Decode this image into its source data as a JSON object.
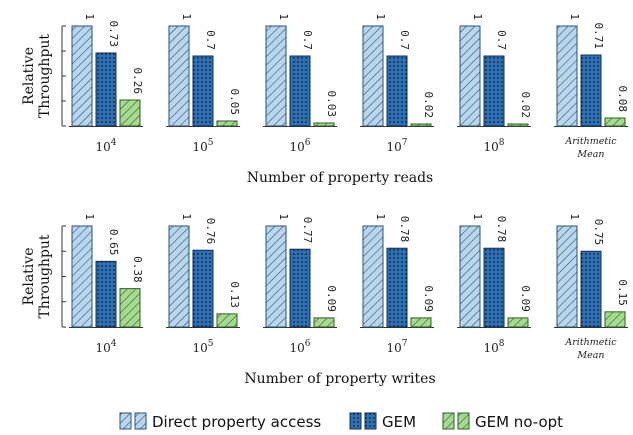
{
  "chart_data": [
    {
      "type": "bar",
      "categories": [
        "10^4",
        "10^5",
        "10^6",
        "10^7",
        "10^8",
        "Arithmetic Mean"
      ],
      "series": [
        {
          "name": "Direct property access",
          "values": [
            1,
            1,
            1,
            1,
            1,
            1
          ]
        },
        {
          "name": "GEM",
          "values": [
            0.73,
            0.7,
            0.7,
            0.7,
            0.7,
            0.71
          ]
        },
        {
          "name": "GEM no-opt",
          "values": [
            0.26,
            0.05,
            0.03,
            0.02,
            0.02,
            0.08
          ]
        }
      ],
      "xlabel": "Number of property reads",
      "ylabel": "Relative Throughput",
      "ylim": [
        0,
        1
      ]
    },
    {
      "type": "bar",
      "categories": [
        "10^4",
        "10^5",
        "10^6",
        "10^7",
        "10^8",
        "Arithmetic Mean"
      ],
      "series": [
        {
          "name": "Direct property access",
          "values": [
            1,
            1,
            1,
            1,
            1,
            1
          ]
        },
        {
          "name": "GEM",
          "values": [
            0.65,
            0.76,
            0.77,
            0.78,
            0.78,
            0.75
          ]
        },
        {
          "name": "GEM no-opt",
          "values": [
            0.38,
            0.13,
            0.09,
            0.09,
            0.09,
            0.15
          ]
        }
      ],
      "xlabel": "Number of property writes",
      "ylabel": "Relative Throughput",
      "ylim": [
        0,
        1
      ]
    }
  ],
  "tick_labels": [
    {
      "base": "10",
      "exp": "4"
    },
    {
      "base": "10",
      "exp": "5"
    },
    {
      "base": "10",
      "exp": "6"
    },
    {
      "base": "10",
      "exp": "7"
    },
    {
      "base": "10",
      "exp": "8"
    },
    {
      "line1": "Arithmetic",
      "line2": "Mean"
    }
  ],
  "legend": [
    {
      "label": "Direct property access",
      "pattern": "hatch-direct"
    },
    {
      "label": "GEM",
      "pattern": "dots-gem"
    },
    {
      "label": "GEM no-opt",
      "pattern": "hatch-noopt"
    }
  ],
  "colors": {
    "direct": "#b9d7ec",
    "gem": "#2f6fb3",
    "noopt": "#a6db8f",
    "outline": "#1f3a5f"
  }
}
